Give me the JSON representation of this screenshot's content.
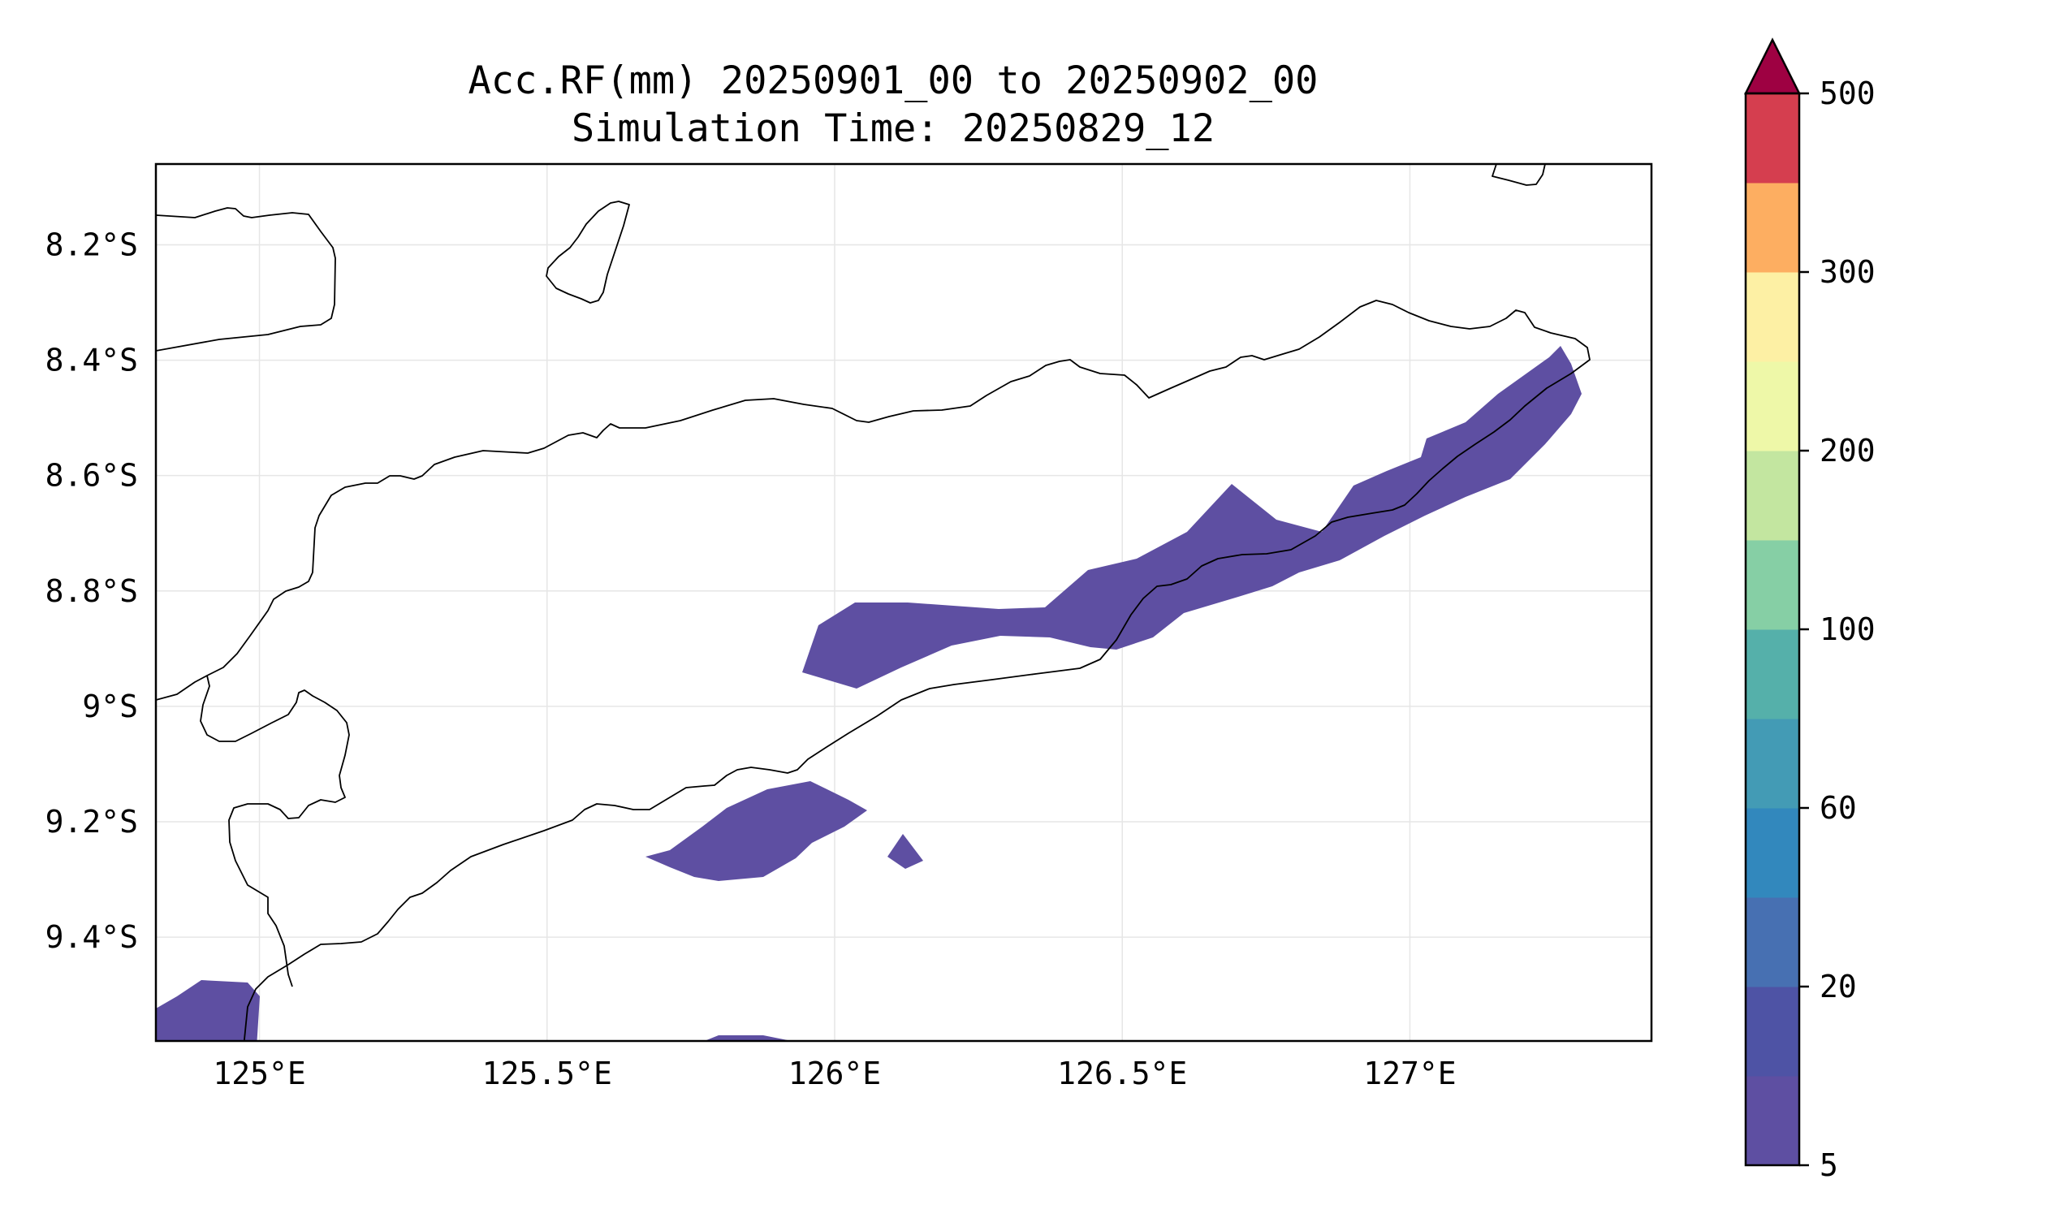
{
  "title": "Acc.RF(mm) 20250901_00 to 20250902_00",
  "subtitle": "Simulation Time: 20250829_12",
  "map": {
    "lon_range": [
      124.82,
      127.42
    ],
    "lat_range": [
      -9.58,
      -8.06
    ],
    "lon_ticks": [
      {
        "value": 125.0,
        "label": "125°E"
      },
      {
        "value": 125.5,
        "label": "125.5°E"
      },
      {
        "value": 126.0,
        "label": "126°E"
      },
      {
        "value": 126.5,
        "label": "126.5°E"
      },
      {
        "value": 127.0,
        "label": "127°E"
      }
    ],
    "lat_ticks": [
      {
        "value": -8.2,
        "label": "8.2°S"
      },
      {
        "value": -8.4,
        "label": "8.4°S"
      },
      {
        "value": -8.6,
        "label": "8.6°S"
      },
      {
        "value": -8.8,
        "label": "8.8°S"
      },
      {
        "value": -9.0,
        "label": "9°S"
      },
      {
        "value": -9.2,
        "label": "9.2°S"
      },
      {
        "value": -9.4,
        "label": "9.4°S"
      }
    ],
    "grid": true,
    "rain_color": "#5e4fa2"
  },
  "colorbar": {
    "extend": "max",
    "extend_color": "#9e0142",
    "bins": [
      "#5e4fa2",
      "#4e53a5",
      "#4770b2",
      "#3288bd",
      "#439bb5",
      "#55b0aa",
      "#86cfa5",
      "#c3e6a0",
      "#eef8a8",
      "#fdf0a4",
      "#fdae61",
      "#d53e4f"
    ],
    "ticks": [
      {
        "label": "5",
        "index": 0
      },
      {
        "label": "20",
        "index": 2
      },
      {
        "label": "60",
        "index": 4
      },
      {
        "label": "100",
        "index": 6
      },
      {
        "label": "200",
        "index": 8
      },
      {
        "label": "300",
        "index": 10
      },
      {
        "label": "500",
        "index": 12
      }
    ]
  }
}
